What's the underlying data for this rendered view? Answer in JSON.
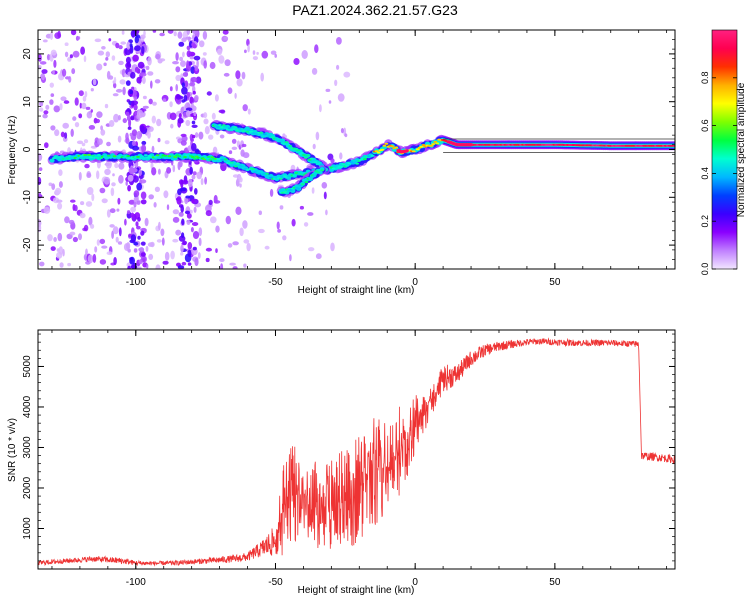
{
  "figure": {
    "title": "PAZ1.2024.362.21.57.G23"
  },
  "chart_data": [
    {
      "type": "heatmap",
      "xlabel": "Height of straight line (km)",
      "ylabel": "Frequency (Hz)",
      "xlim": [
        -135,
        93
      ],
      "ylim": [
        -25,
        25
      ],
      "x_ticks": [
        -100,
        -50,
        0,
        50
      ],
      "y_ticks": [
        -20,
        -10,
        0,
        10,
        20
      ],
      "colorbar": {
        "label": "Normalized spectral amplitude",
        "ticks": [
          0.0,
          0.2,
          0.4,
          0.6,
          0.8
        ],
        "range": [
          0,
          1
        ],
        "colors": [
          "#f2e6ff",
          "#c080ff",
          "#8a00ff",
          "#3a00ff",
          "#0040ff",
          "#00b8ff",
          "#00ffd0",
          "#00ff40",
          "#7fff00",
          "#ffff00",
          "#ffb000",
          "#ff3000",
          "#ff0050",
          "#ff2080"
        ]
      },
      "ridges": [
        {
          "name": "main",
          "points": [
            [
              -130,
              -2
            ],
            [
              -120,
              -1.5
            ],
            [
              -110,
              -1.5
            ],
            [
              -100,
              -1.5
            ],
            [
              -90,
              -1.6
            ],
            [
              -80,
              -1.5
            ],
            [
              -70,
              -2
            ],
            [
              -60,
              -4
            ],
            [
              -50,
              -6
            ],
            [
              -40,
              -5
            ],
            [
              -30,
              -4
            ],
            [
              -20,
              -2.5
            ],
            [
              -15,
              -1
            ],
            [
              -10,
              1
            ],
            [
              -5,
              -0.5
            ],
            [
              0,
              0
            ],
            [
              10,
              2
            ],
            [
              15,
              1
            ],
            [
              30,
              1
            ],
            [
              50,
              1
            ],
            [
              70,
              0.8
            ],
            [
              93,
              0.8
            ]
          ]
        },
        {
          "name": "upper",
          "points": [
            [
              -72,
              5
            ],
            [
              -60,
              4
            ],
            [
              -50,
              2.5
            ],
            [
              -40,
              -1
            ],
            [
              -32,
              -4
            ]
          ]
        },
        {
          "name": "lower",
          "points": [
            [
              -48,
              -9
            ],
            [
              -42,
              -8
            ],
            [
              -38,
              -6
            ],
            [
              -33,
              -4
            ]
          ]
        }
      ]
    },
    {
      "type": "line",
      "xlabel": "Height of straight line (km)",
      "ylabel": "SNR (10 * v/v)",
      "xlim": [
        -135,
        93
      ],
      "ylim": [
        0,
        5900
      ],
      "x_ticks": [
        -100,
        -50,
        0,
        50
      ],
      "y_ticks": [
        1000,
        2000,
        3000,
        4000,
        5000
      ],
      "series": [
        {
          "color": "#ee3333",
          "x": [
            -135,
            -125,
            -115,
            -105,
            -100,
            -95,
            -85,
            -75,
            -65,
            -60,
            -55,
            -50,
            -46,
            -42,
            -38,
            -35,
            -30,
            -25,
            -20,
            -15,
            -12,
            -8,
            -5,
            -2,
            0,
            3,
            6,
            10,
            15,
            20,
            25,
            30,
            35,
            40,
            45,
            50,
            60,
            70,
            80,
            81,
            83,
            88,
            93
          ],
          "values": [
            150,
            200,
            250,
            200,
            150,
            140,
            150,
            200,
            250,
            300,
            500,
            700,
            1700,
            2000,
            1600,
            1600,
            1500,
            1700,
            2000,
            2500,
            2400,
            2600,
            3000,
            3200,
            3600,
            3800,
            4100,
            4700,
            4800,
            5200,
            5400,
            5500,
            5550,
            5600,
            5620,
            5600,
            5580,
            5580,
            5550,
            2800,
            2780,
            2750,
            2700
          ],
          "noise_amplitude": [
            60,
            60,
            70,
            80,
            60,
            50,
            60,
            70,
            90,
            110,
            200,
            400,
            1400,
            1200,
            1000,
            1100,
            1200,
            1300,
            1300,
            1500,
            1200,
            1100,
            1100,
            800,
            700,
            500,
            400,
            350,
            250,
            200,
            150,
            120,
            100,
            80,
            80,
            80,
            80,
            80,
            80,
            100,
            100,
            100,
            100
          ]
        }
      ]
    }
  ]
}
